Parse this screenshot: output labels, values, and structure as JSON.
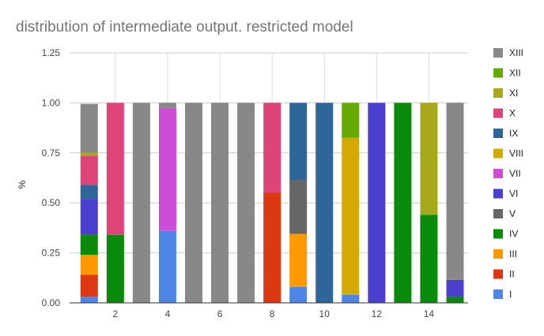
{
  "chart_data": {
    "type": "bar",
    "stacked": true,
    "title": "distribution of intermediate output. restricted model",
    "xlabel": "",
    "ylabel": "%",
    "ylim": [
      0,
      1.25
    ],
    "yticks": [
      "0.00",
      "0.25",
      "0.50",
      "0.75",
      "1.00",
      "1.25"
    ],
    "x": [
      1,
      2,
      3,
      4,
      5,
      6,
      7,
      8,
      9,
      10,
      11,
      12,
      13,
      14,
      15
    ],
    "xtick_labels": [
      "2",
      "4",
      "6",
      "8",
      "10",
      "12",
      "14"
    ],
    "xtick_values": [
      2,
      4,
      6,
      8,
      10,
      12,
      14
    ],
    "grid": true,
    "legend_position": "right",
    "series": [
      {
        "name": "I",
        "color": "#4e86e8",
        "values": [
          0.03,
          0,
          0,
          0.36,
          0,
          0,
          0,
          0,
          0.08,
          0,
          0.04,
          0,
          0,
          0,
          0
        ]
      },
      {
        "name": "II",
        "color": "#dc3912",
        "values": [
          0.11,
          0,
          0,
          0,
          0,
          0,
          0,
          0.55,
          0,
          0,
          0,
          0,
          0,
          0,
          0
        ]
      },
      {
        "name": "III",
        "color": "#ff9900",
        "values": [
          0.1,
          0,
          0,
          0,
          0,
          0,
          0,
          0,
          0.265,
          0,
          0,
          0,
          0,
          0,
          0
        ]
      },
      {
        "name": "IV",
        "color": "#0a8a0a",
        "values": [
          0.1,
          0.34,
          0,
          0,
          0,
          0,
          0,
          0,
          0,
          0,
          0,
          0,
          1.0,
          0.44,
          0.03
        ]
      },
      {
        "name": "V",
        "color": "#666666",
        "values": [
          0,
          0,
          0,
          0,
          0,
          0,
          0,
          0,
          0.27,
          0,
          0,
          0,
          0,
          0,
          0
        ]
      },
      {
        "name": "VI",
        "color": "#4b3fcf",
        "values": [
          0.18,
          0,
          0,
          0,
          0,
          0,
          0,
          0,
          0,
          0,
          0,
          1.0,
          0,
          0,
          0.085
        ]
      },
      {
        "name": "VII",
        "color": "#cc4dd6",
        "values": [
          0,
          0,
          0,
          0.615,
          0,
          0,
          0,
          0,
          0,
          0,
          0,
          0,
          0,
          0,
          0
        ]
      },
      {
        "name": "VIII",
        "color": "#d4aa00",
        "values": [
          0,
          0,
          0,
          0,
          0,
          0,
          0,
          0,
          0,
          0,
          0.785,
          0,
          0,
          0,
          0
        ]
      },
      {
        "name": "IX",
        "color": "#2f6699",
        "values": [
          0.07,
          0,
          0,
          0,
          0,
          0,
          0,
          0,
          0.385,
          1.0,
          0,
          0,
          0,
          0,
          0
        ]
      },
      {
        "name": "X",
        "color": "#dd4477",
        "values": [
          0.145,
          0.66,
          0,
          0,
          0,
          0,
          0,
          0.45,
          0,
          0,
          0,
          0,
          0,
          0,
          0
        ]
      },
      {
        "name": "XI",
        "color": "#a8a81c",
        "values": [
          0.015,
          0,
          0,
          0,
          0,
          0,
          0,
          0,
          0,
          0,
          0,
          0,
          0,
          0.56,
          0
        ]
      },
      {
        "name": "XII",
        "color": "#66aa00",
        "values": [
          0,
          0,
          0,
          0,
          0,
          0,
          0,
          0,
          0,
          0,
          0.175,
          0,
          0,
          0,
          0
        ]
      },
      {
        "name": "XIII",
        "color": "#888888",
        "values": [
          0.245,
          0,
          1.0,
          0.025,
          1.0,
          1.0,
          1.0,
          0,
          0,
          0,
          0,
          0,
          0,
          0,
          0.885
        ]
      }
    ]
  }
}
